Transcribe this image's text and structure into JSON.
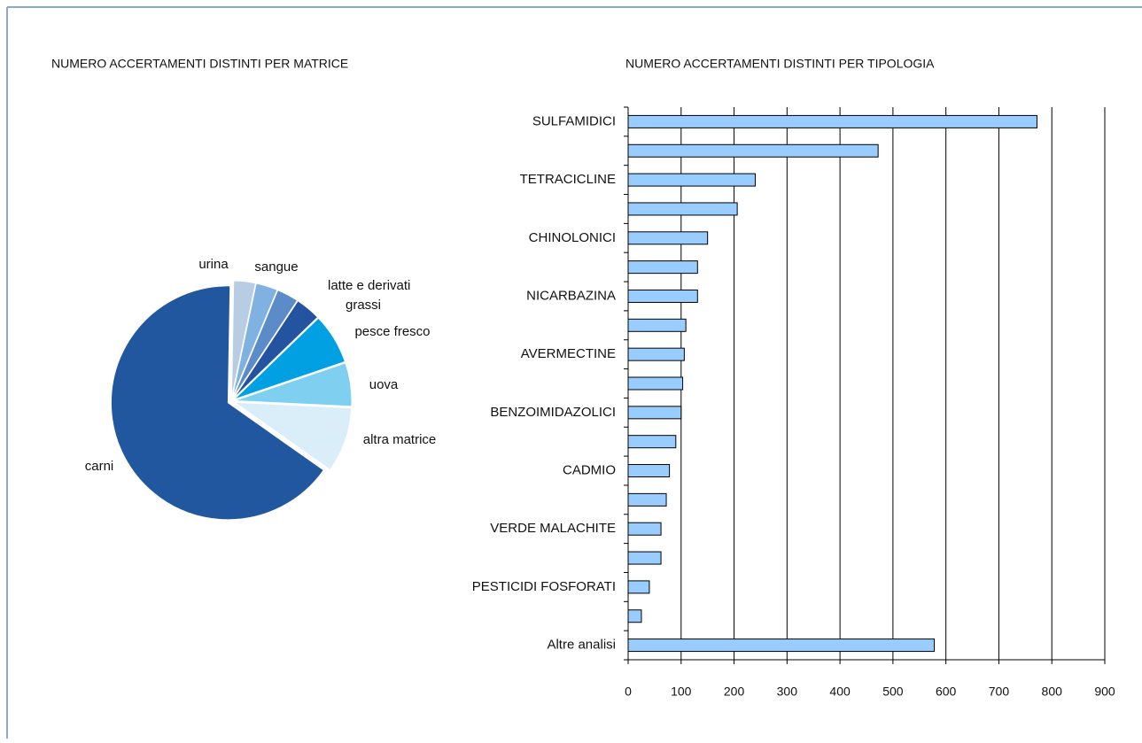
{
  "chart_data": [
    {
      "type": "pie",
      "title": "NUMERO ACCERTAMENTI DISTINTI PER MATRICE",
      "categories": [
        "urina",
        "sangue",
        "latte e derivati",
        "grassi",
        "pesce fresco",
        "uova",
        "altra matrice",
        "carni"
      ],
      "values": [
        3,
        3,
        3,
        3.5,
        7,
        6,
        9,
        65.5
      ],
      "colors": [
        "#b8cce4",
        "#7fb2e0",
        "#5b8bc9",
        "#2454a0",
        "#00a0e3",
        "#7fcff0",
        "#d9eef9",
        "#21579e"
      ]
    },
    {
      "type": "hbar",
      "title": "NUMERO ACCERTAMENTI DISTINTI PER TIPOLOGIA",
      "categories": [
        "SULFAMIDICI",
        null,
        "TETRACICLINE",
        null,
        "CHINOLONICI",
        null,
        "NICARBAZINA",
        null,
        "AVERMECTINE",
        null,
        "BENZOIMIDAZOLICI",
        null,
        "CADMIO",
        null,
        "VERDE MALACHITE",
        null,
        "PESTICIDI FOSFORATI",
        null,
        "Altre analisi"
      ],
      "values": [
        772,
        472,
        240,
        206,
        150,
        131,
        131,
        109,
        106,
        103,
        100,
        90,
        78,
        72,
        62,
        62,
        40,
        25,
        578
      ],
      "color": "#99ccff",
      "xlim": [
        0,
        900
      ],
      "xticks": [
        0,
        100,
        200,
        300,
        400,
        500,
        600,
        700,
        800,
        900
      ],
      "grid": true
    }
  ]
}
